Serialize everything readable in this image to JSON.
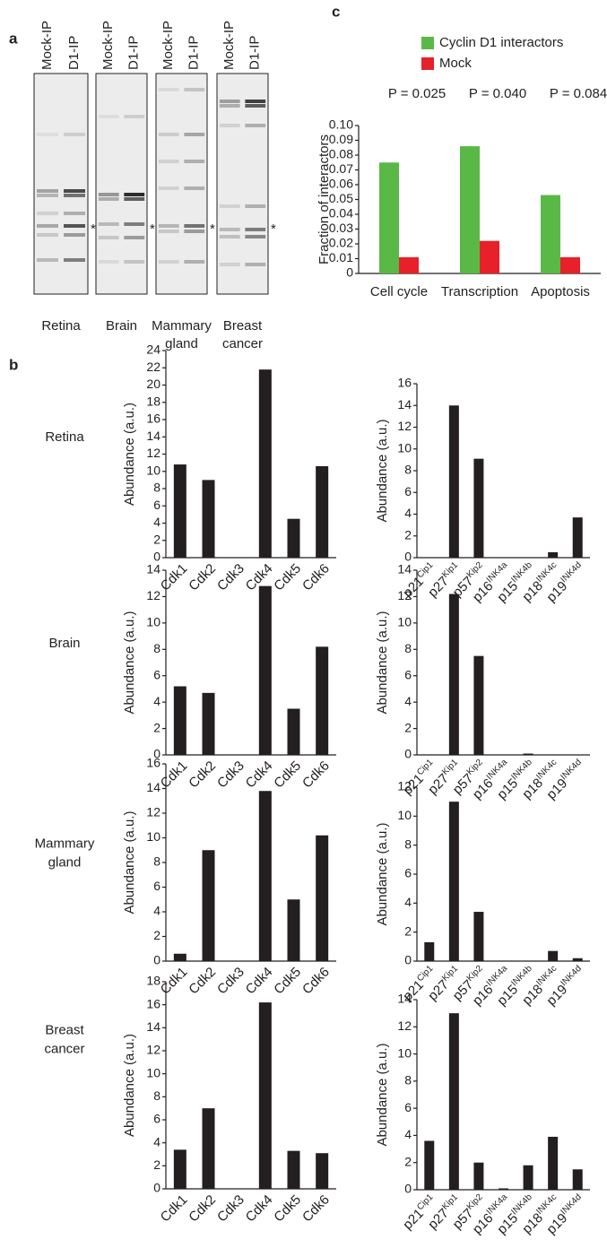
{
  "panel_a": {
    "label": "a",
    "gels": [
      {
        "lanes": [
          "Mock-IP",
          "D1-IP"
        ],
        "marker": "*",
        "tissue": [
          "Retina"
        ]
      },
      {
        "lanes": [
          "Mock-IP",
          "D1-IP"
        ],
        "marker": "*",
        "tissue": [
          "Brain"
        ]
      },
      {
        "lanes": [
          "Mock-IP",
          "D1-IP"
        ],
        "marker": "*",
        "tissue": [
          "Mammary",
          "gland"
        ]
      },
      {
        "lanes": [
          "Mock-IP",
          "D1-IP"
        ],
        "marker": "*",
        "tissue": [
          "Breast",
          "cancer"
        ]
      }
    ]
  },
  "panel_b": {
    "label": "b",
    "rows": [
      [
        "Retina"
      ],
      [
        "Brain"
      ],
      [
        "Mammary",
        "gland"
      ],
      [
        "Breast",
        "cancer"
      ]
    ]
  },
  "panel_c": {
    "label": "c"
  },
  "chart_data": [
    {
      "type": "bar",
      "ylabel": "Fraction of interactors",
      "categories": [
        "Cell cycle",
        "Transcription",
        "Apoptosis"
      ],
      "series": [
        {
          "name": "Cyclin D1 interactors",
          "color": "#5ab946",
          "values": [
            0.075,
            0.086,
            0.053
          ]
        },
        {
          "name": "Mock",
          "color": "#e8202a",
          "values": [
            0.011,
            0.022,
            0.011
          ]
        }
      ],
      "annotations": [
        "P = 0.025",
        "P = 0.040",
        "P = 0.084"
      ],
      "ylim": [
        0,
        0.1
      ],
      "yticks": [
        0,
        0.01,
        0.02,
        0.03,
        0.04,
        0.05,
        0.06,
        0.07,
        0.08,
        0.09,
        {
          "value": 0.1,
          "label": "0.10"
        }
      ]
    },
    {
      "type": "bar",
      "ylabel": "Abundance (a.u.)",
      "color": "#231f20",
      "categories": [
        "Cdk1",
        "Cdk2",
        "Cdk3",
        "Cdk4",
        "Cdk5",
        "Cdk6"
      ],
      "values": [
        10.8,
        9,
        0,
        21.8,
        4.5,
        10.6
      ],
      "ylim": [
        0,
        24
      ],
      "yticks": [
        0,
        2,
        4,
        6,
        8,
        10,
        12,
        14,
        16,
        18,
        20,
        22,
        24
      ]
    },
    {
      "type": "bar",
      "ylabel": "Abundance (a.u.)",
      "color": "#231f20",
      "categories": [
        "p21",
        "p27",
        "p57",
        "p16",
        "p15",
        "p18",
        "p19"
      ],
      "category_sups": [
        "Cip1",
        "Kip1",
        "Kip2",
        "INK4a",
        "INK4b",
        "INK4c",
        "INK4d"
      ],
      "values": [
        0,
        14,
        9.1,
        0,
        0,
        0.5,
        3.7
      ],
      "ylim": [
        0,
        16
      ],
      "yticks": [
        0,
        2,
        4,
        6,
        8,
        10,
        12,
        14,
        16
      ]
    },
    {
      "type": "bar",
      "ylabel": "Abundance (a.u.)",
      "color": "#231f20",
      "categories": [
        "Cdk1",
        "Cdk2",
        "Cdk3",
        "Cdk4",
        "Cdk5",
        "Cdk6"
      ],
      "values": [
        5.2,
        4.7,
        0,
        12.8,
        3.5,
        8.2
      ],
      "ylim": [
        0,
        14
      ],
      "yticks": [
        0,
        2,
        4,
        6,
        8,
        10,
        12,
        14
      ]
    },
    {
      "type": "bar",
      "ylabel": "Abundance (a.u.)",
      "color": "#231f20",
      "categories": [
        "p21",
        "p27",
        "p57",
        "p16",
        "p15",
        "p18",
        "p19"
      ],
      "category_sups": [
        "Cip1",
        "Kip1",
        "Kip2",
        "INK4a",
        "INK4b",
        "INK4c",
        "INK4d"
      ],
      "values": [
        0,
        12.2,
        7.5,
        0,
        0.1,
        0,
        0
      ],
      "ylim": [
        0,
        14
      ],
      "yticks": [
        0,
        2,
        4,
        6,
        8,
        10,
        12,
        14
      ]
    },
    {
      "type": "bar",
      "ylabel": "Abundance (a.u.)",
      "color": "#231f20",
      "categories": [
        "Cdk1",
        "Cdk2",
        "Cdk3",
        "Cdk4",
        "Cdk5",
        "Cdk6"
      ],
      "values": [
        0.6,
        9,
        0,
        13.8,
        5,
        10.2
      ],
      "ylim": [
        0,
        16
      ],
      "yticks": [
        0,
        2,
        4,
        6,
        8,
        10,
        12,
        14,
        16
      ]
    },
    {
      "type": "bar",
      "ylabel": "Abundance (a.u.)",
      "color": "#231f20",
      "categories": [
        "p21",
        "p27",
        "p57",
        "p16",
        "p15",
        "p18",
        "p19"
      ],
      "category_sups": [
        "Cip1",
        "Kip1",
        "Kip2",
        "INK4a",
        "INK4b",
        "INK4c",
        "INK4d"
      ],
      "values": [
        1.3,
        11,
        3.4,
        0,
        0,
        0.7,
        0.2
      ],
      "ylim": [
        0,
        12
      ],
      "yticks": [
        0,
        2,
        4,
        6,
        8,
        10,
        12
      ]
    },
    {
      "type": "bar",
      "ylabel": "Abundance (a.u.)",
      "color": "#231f20",
      "categories": [
        "Cdk1",
        "Cdk2",
        "Cdk3",
        "Cdk4",
        "Cdk5",
        "Cdk6"
      ],
      "values": [
        3.4,
        7,
        0,
        16.2,
        3.3,
        3.1
      ],
      "ylim": [
        0,
        18
      ],
      "yticks": [
        0,
        2,
        4,
        6,
        8,
        10,
        12,
        14,
        16,
        18
      ]
    },
    {
      "type": "bar",
      "ylabel": "Abundance (a.u.)",
      "color": "#231f20",
      "categories": [
        "p21",
        "p27",
        "p57",
        "p16",
        "p15",
        "p18",
        "p19"
      ],
      "category_sups": [
        "Cip1",
        "Kip1",
        "Kip2",
        "INK4a",
        "INK4b",
        "INK4c",
        "INK4d"
      ],
      "values": [
        3.6,
        13,
        2,
        0.1,
        1.8,
        3.9,
        1.5
      ],
      "ylim": [
        0,
        14
      ],
      "yticks": [
        0,
        2,
        4,
        6,
        8,
        10,
        12,
        14
      ]
    }
  ]
}
